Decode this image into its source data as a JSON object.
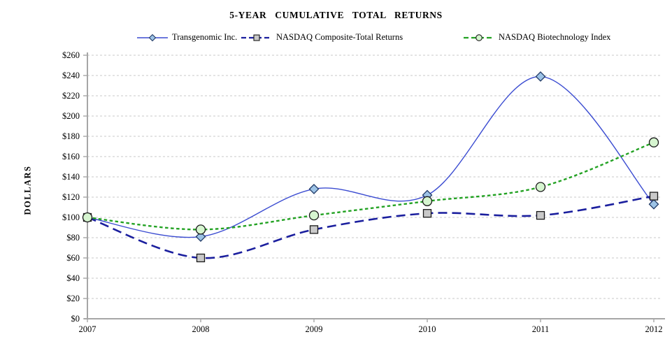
{
  "chart_data": {
    "type": "line",
    "title": "5-YEAR  CUMULATIVE  TOTAL  RETURNS",
    "ylabel": "DOLLARS",
    "xlabel": "",
    "categories": [
      "2007",
      "2008",
      "2009",
      "2010",
      "2011",
      "2012"
    ],
    "ylim": [
      0,
      260
    ],
    "y_tick_step": 20,
    "y_tick_labels": [
      "$0",
      "$20",
      "$40",
      "$60",
      "$80",
      "$100",
      "$120",
      "$140",
      "$160",
      "$180",
      "$200",
      "$220",
      "$240",
      "$260"
    ],
    "grid": true,
    "legend_position": "top",
    "series": [
      {
        "name": "Transgenomic Inc.",
        "values": [
          100,
          81,
          128,
          122,
          239,
          113
        ],
        "line_color": "#3b4cd1",
        "line_width": 1.4,
        "dash": "",
        "marker": "diamond",
        "marker_fill": "#9dc3e6",
        "marker_stroke": "#1f3864"
      },
      {
        "name": "NASDAQ Composite-Total Returns",
        "values": [
          100,
          60,
          88,
          104,
          102,
          121
        ],
        "line_color": "#1b1f9e",
        "line_width": 2.6,
        "dash": "13 7",
        "marker": "square",
        "marker_fill": "#c9c9c9",
        "marker_stroke": "#1a1a1a"
      },
      {
        "name": "NASDAQ Biotechnology Index",
        "values": [
          100,
          88,
          102,
          116,
          130,
          174
        ],
        "line_color": "#23a223",
        "line_width": 2.4,
        "dash": "4.5 3.5",
        "marker": "circle",
        "marker_fill": "#d6f5d0",
        "marker_stroke": "#1a1a1a"
      }
    ],
    "colors": {
      "gridline": "#c9c9c9",
      "axis": "#a6a6a6",
      "text": "#000000"
    }
  }
}
